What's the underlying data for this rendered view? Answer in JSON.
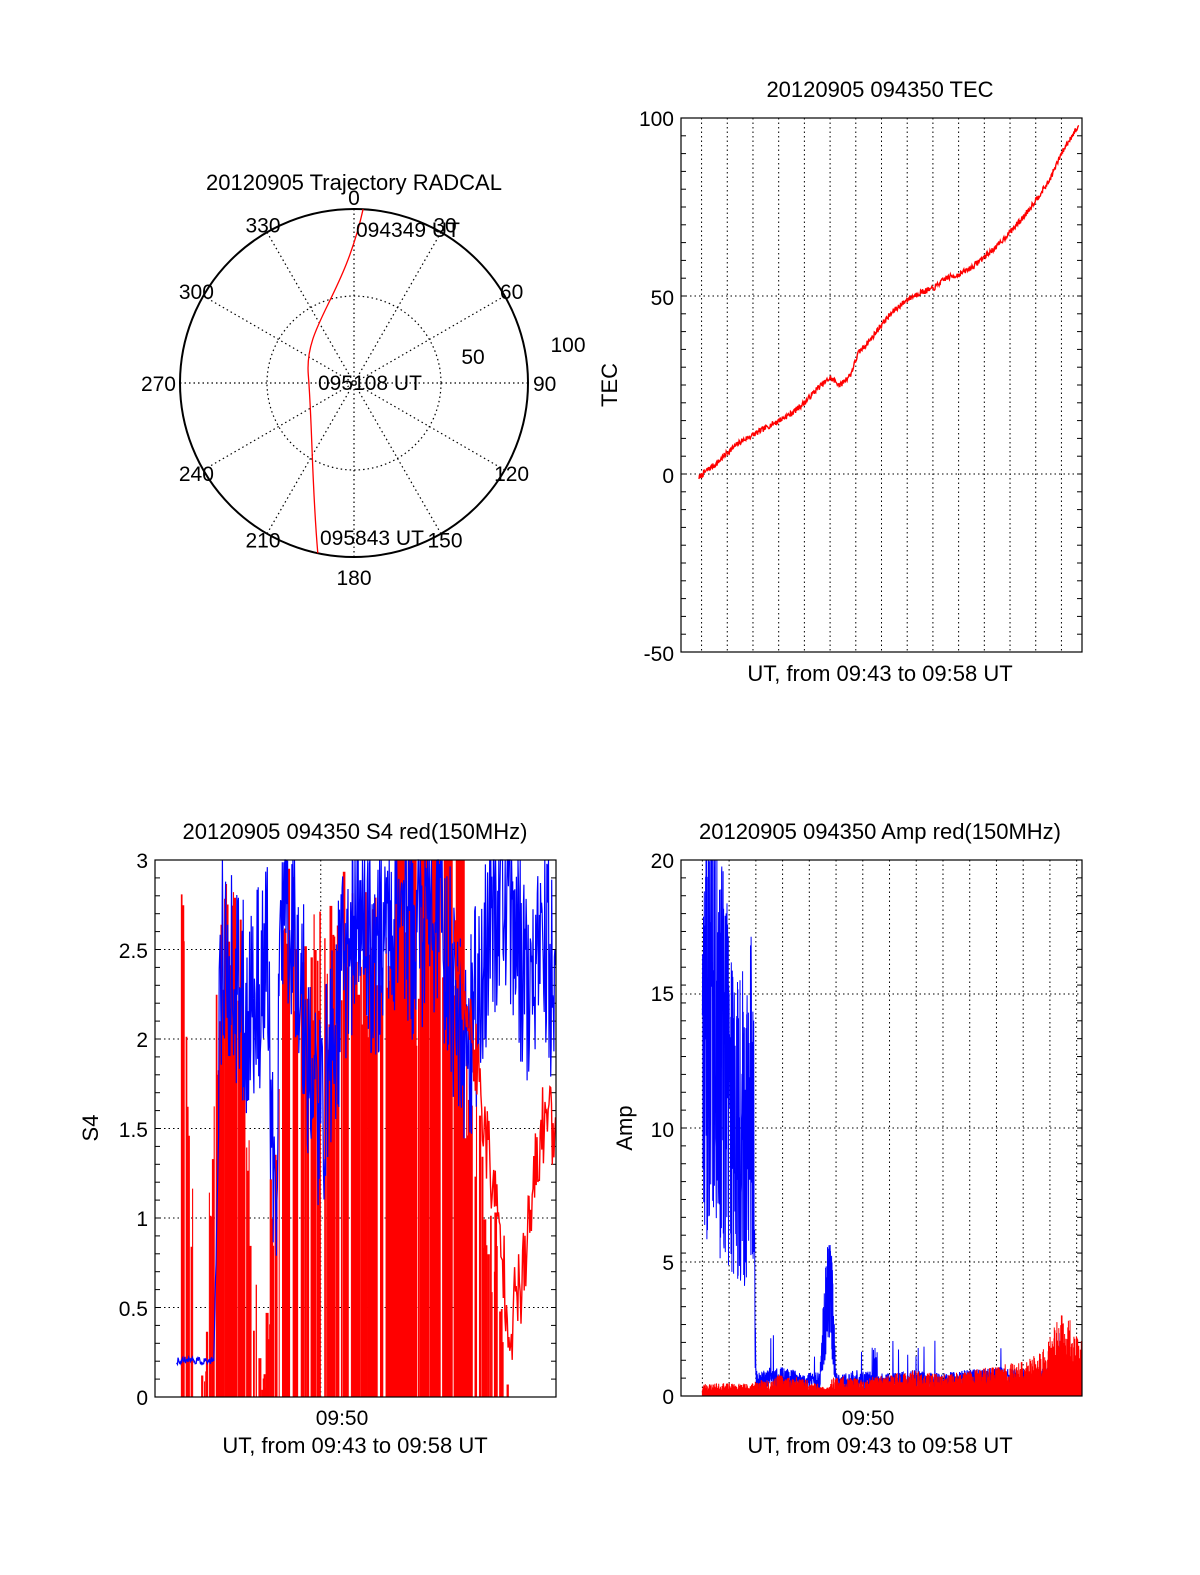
{
  "panels": {
    "polar": {
      "title": "20120905 Trajectory RADCAL",
      "azimuth_labels": [
        "0",
        "30",
        "60",
        "90",
        "120",
        "150",
        "180",
        "210",
        "240",
        "270",
        "300",
        "330"
      ],
      "elevation_labels": [
        "50",
        "100"
      ],
      "time_labels": {
        "start": "094349 UT",
        "mid": "095108 UT",
        "end": "095843 UT"
      }
    },
    "tec": {
      "title": "20120905 094350 TEC",
      "ylabel": "TEC",
      "xlabel": "UT, from 09:43 to 09:58 UT",
      "yticks": [
        "100",
        "50",
        "0",
        "-50"
      ]
    },
    "s4": {
      "title": "20120905 094350 S4 red(150MHz)",
      "ylabel": "S4",
      "xlabel": "UT, from 09:43 to 09:58 UT",
      "xtick": "09:50",
      "yticks": [
        "3",
        "2.5",
        "2",
        "1.5",
        "1",
        "0.5",
        "0"
      ]
    },
    "amp": {
      "title": "20120905 094350 Amp red(150MHz)",
      "ylabel": "Amp",
      "xlabel": "UT, from 09:43 to 09:58 UT",
      "xtick": "09:50",
      "yticks": [
        "20",
        "15",
        "10",
        "5",
        "0"
      ]
    }
  },
  "chart_data": [
    {
      "type": "scatter",
      "title": "20120905 Trajectory RADCAL",
      "projection": "polar",
      "azimuth_deg_ticks": [
        0,
        30,
        60,
        90,
        120,
        150,
        180,
        210,
        240,
        270,
        300,
        330
      ],
      "radius_rings": [
        50,
        100
      ],
      "track": [
        {
          "time": "094349 UT",
          "azimuth": 3,
          "zenith_dist": 90
        },
        {
          "time": "095108 UT",
          "azimuth": 280,
          "zenith_dist": 24
        },
        {
          "time": "095843 UT",
          "azimuth": 192,
          "zenith_dist": 90
        }
      ],
      "color": "#ff0000"
    },
    {
      "type": "line",
      "title": "20120905 094350 TEC",
      "xlabel": "UT, from 09:43 to 09:58 UT",
      "ylabel": "TEC",
      "ylim": [
        -50,
        100
      ],
      "xlim_min": [
        43.2,
        58.8
      ],
      "grid": true,
      "series": [
        {
          "color": "#ff0000",
          "x_min": [
            43.9,
            44.2,
            44.6,
            45.0,
            45.5,
            46.0,
            46.5,
            47.0,
            47.5,
            48.0,
            48.5,
            49.0,
            49.4,
            49.8,
            50.1,
            50.6,
            51.0,
            51.5,
            52.0,
            52.5,
            53.0,
            53.5,
            54.0,
            54.5,
            55.0,
            55.5,
            56.0,
            56.5,
            57.0,
            57.5,
            58.0,
            58.4,
            58.7
          ],
          "values": [
            -1,
            1,
            3,
            6,
            9,
            11,
            13,
            15,
            17,
            20,
            24,
            27,
            25,
            28,
            34,
            38,
            42,
            46,
            49,
            51,
            52,
            55,
            56,
            58,
            61,
            64,
            68,
            72,
            77,
            82,
            90,
            95,
            98
          ]
        }
      ]
    },
    {
      "type": "line",
      "title": "20120905 094350 S4 red(150MHz)",
      "xlabel": "UT, from 09:43 to 09:58 UT",
      "ylabel": "S4",
      "ylim": [
        0,
        3
      ],
      "xlim_min": [
        43.8,
        58.8
      ],
      "x_tick": "09:50",
      "grid": true,
      "series": [
        {
          "color": "#0000ff",
          "x_min": [
            44.6,
            45.0,
            45.5,
            46.0,
            46.3,
            46.8,
            47.3,
            48.0,
            48.3,
            48.5,
            49.0,
            49.6,
            50.0,
            50.5,
            51.0,
            51.5,
            52.0,
            52.5,
            53.0,
            53.5,
            54.0,
            54.5,
            55.0,
            55.5,
            56.0,
            56.5,
            57.0,
            57.5,
            58.0,
            58.5,
            58.8
          ],
          "values": [
            0.2,
            0.21,
            0.2,
            0.2,
            2.3,
            2.0,
            1.9,
            2.2,
            0.4,
            2.6,
            2.4,
            1.6,
            1.3,
            1.8,
            2.3,
            2.5,
            2.2,
            2.4,
            2.6,
            2.3,
            2.5,
            2.4,
            2.0,
            1.7,
            2.1,
            2.5,
            2.6,
            2.2,
            2.0,
            2.3,
            1.8
          ]
        },
        {
          "color": "#ff0000",
          "x_min": [
            44.8,
            45.5,
            46.3,
            47.0,
            47.8,
            48.6,
            49.4,
            50.2,
            51.0,
            51.8,
            52.6,
            53.4,
            54.2,
            55.0,
            55.8,
            56.6,
            57.1,
            57.6,
            58.0,
            58.4,
            58.8
          ],
          "values": [
            3.0,
            0.0,
            3.0,
            2.8,
            0.0,
            3.0,
            2.9,
            2.7,
            3.0,
            2.8,
            2.9,
            2.7,
            2.9,
            2.5,
            1.9,
            1.0,
            0.4,
            0.7,
            1.2,
            1.6,
            1.5
          ]
        }
      ]
    },
    {
      "type": "line",
      "title": "20120905 094350 Amp red(150MHz)",
      "xlabel": "UT, from 09:43 to 09:58 UT",
      "ylabel": "Amp",
      "ylim": [
        0,
        20
      ],
      "xlim_min": [
        43.8,
        58.8
      ],
      "x_tick": "09:50",
      "grid": true,
      "series": [
        {
          "color": "#0000ff",
          "x_min": [
            44.6,
            44.9,
            45.2,
            45.5,
            45.8,
            46.1,
            46.5,
            46.6,
            47.5,
            48.5,
            49.0,
            49.2,
            49.4,
            49.6,
            50.5,
            51.5,
            52.5,
            53.5,
            54.5,
            55.5,
            56.5,
            57.5,
            58.5,
            58.8
          ],
          "values": [
            11,
            16,
            13,
            12,
            11,
            10,
            11,
            0.7,
            0.8,
            0.6,
            0.7,
            4.5,
            5.5,
            0.6,
            0.7,
            0.6,
            0.7,
            0.6,
            0.7,
            0.8,
            0.7,
            0.8,
            0.9,
            0.8
          ]
        },
        {
          "color": "#ff0000",
          "x_min": [
            44.6,
            45.5,
            46.4,
            47.5,
            48.5,
            49.3,
            49.5,
            50.5,
            51.5,
            52.5,
            53.5,
            54.5,
            55.5,
            56.5,
            57.2,
            57.6,
            58.0,
            58.4,
            58.8
          ],
          "values": [
            0.3,
            0.3,
            0.3,
            0.5,
            0.4,
            0.2,
            0.5,
            0.4,
            0.5,
            0.6,
            0.5,
            0.6,
            0.7,
            0.8,
            1.0,
            1.5,
            2.0,
            1.8,
            1.4
          ]
        }
      ]
    }
  ]
}
